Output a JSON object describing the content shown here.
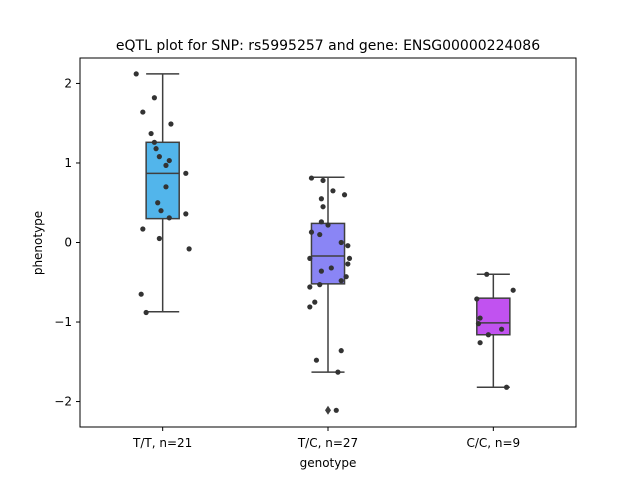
{
  "chart_data": {
    "type": "box",
    "title": "eQTL plot for SNP: rs5995257 and gene: ENSG00000224086",
    "xlabel": "genotype",
    "ylabel": "phenotype",
    "ylim": [
      -2.32,
      2.32
    ],
    "yticks": [
      {
        "value": 2,
        "label": "2"
      },
      {
        "value": 1,
        "label": "1"
      },
      {
        "value": 0,
        "label": "0"
      },
      {
        "value": -1,
        "label": "−1"
      },
      {
        "value": -2,
        "label": "−2"
      }
    ],
    "categories": [
      "T/T, n=21",
      "T/C, n=27",
      "C/C, n=9"
    ],
    "colors": [
      "#52b5eb",
      "#8a85f5",
      "#c152f0"
    ],
    "boxes": [
      {
        "min": -0.87,
        "q1": 0.3,
        "median": 0.87,
        "q3": 1.26,
        "max": 2.12,
        "outliers": []
      },
      {
        "min": -1.63,
        "q1": -0.52,
        "median": -0.17,
        "q3": 0.24,
        "max": 0.82,
        "outliers": [
          -2.11
        ]
      },
      {
        "min": -1.82,
        "q1": -1.16,
        "median": -1.01,
        "q3": -0.7,
        "max": -0.4,
        "outliers": []
      }
    ],
    "points": [
      [
        {
          "x": -0.16,
          "y": 2.12
        },
        {
          "x": -0.05,
          "y": 1.82
        },
        {
          "x": -0.12,
          "y": 1.64
        },
        {
          "x": 0.05,
          "y": 1.49
        },
        {
          "x": -0.07,
          "y": 1.37
        },
        {
          "x": -0.05,
          "y": 1.26
        },
        {
          "x": -0.04,
          "y": 1.18
        },
        {
          "x": -0.02,
          "y": 1.08
        },
        {
          "x": 0.04,
          "y": 1.03
        },
        {
          "x": 0.02,
          "y": 0.97
        },
        {
          "x": 0.14,
          "y": 0.87
        },
        {
          "x": 0.02,
          "y": 0.7
        },
        {
          "x": -0.03,
          "y": 0.5
        },
        {
          "x": -0.01,
          "y": 0.4
        },
        {
          "x": 0.14,
          "y": 0.36
        },
        {
          "x": 0.04,
          "y": 0.31
        },
        {
          "x": -0.12,
          "y": 0.17
        },
        {
          "x": -0.02,
          "y": 0.05
        },
        {
          "x": 0.16,
          "y": -0.08
        },
        {
          "x": -0.13,
          "y": -0.65
        },
        {
          "x": -0.1,
          "y": -0.88
        }
      ],
      [
        {
          "x": -0.1,
          "y": 0.81
        },
        {
          "x": -0.03,
          "y": 0.78
        },
        {
          "x": 0.03,
          "y": 0.65
        },
        {
          "x": 0.1,
          "y": 0.6
        },
        {
          "x": -0.04,
          "y": 0.55
        },
        {
          "x": -0.03,
          "y": 0.45
        },
        {
          "x": -0.04,
          "y": 0.26
        },
        {
          "x": 0.0,
          "y": 0.22
        },
        {
          "x": -0.1,
          "y": 0.13
        },
        {
          "x": -0.05,
          "y": 0.1
        },
        {
          "x": 0.08,
          "y": 0.0
        },
        {
          "x": 0.12,
          "y": -0.04
        },
        {
          "x": -0.11,
          "y": -0.2
        },
        {
          "x": 0.13,
          "y": -0.2
        },
        {
          "x": 0.12,
          "y": -0.27
        },
        {
          "x": 0.02,
          "y": -0.32
        },
        {
          "x": -0.04,
          "y": -0.36
        },
        {
          "x": 0.11,
          "y": -0.43
        },
        {
          "x": 0.08,
          "y": -0.48
        },
        {
          "x": -0.05,
          "y": -0.53
        },
        {
          "x": -0.11,
          "y": -0.56
        },
        {
          "x": -0.08,
          "y": -0.75
        },
        {
          "x": -0.11,
          "y": -0.81
        },
        {
          "x": 0.08,
          "y": -1.36
        },
        {
          "x": -0.07,
          "y": -1.48
        },
        {
          "x": 0.06,
          "y": -1.63
        },
        {
          "x": 0.05,
          "y": -2.11
        }
      ],
      [
        {
          "x": -0.04,
          "y": -0.4
        },
        {
          "x": 0.12,
          "y": -0.6
        },
        {
          "x": -0.1,
          "y": -0.71
        },
        {
          "x": -0.08,
          "y": -0.95
        },
        {
          "x": -0.09,
          "y": -1.02
        },
        {
          "x": 0.05,
          "y": -1.09
        },
        {
          "x": -0.03,
          "y": -1.16
        },
        {
          "x": -0.08,
          "y": -1.26
        },
        {
          "x": 0.08,
          "y": -1.82
        }
      ]
    ]
  }
}
